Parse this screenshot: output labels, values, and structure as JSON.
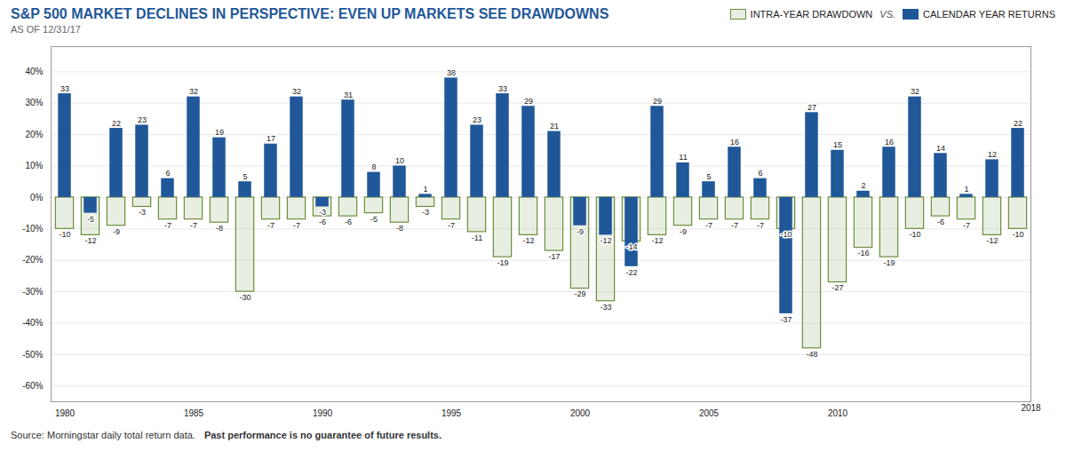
{
  "chart_data": {
    "type": "bar",
    "title": "S&P 500 MARKET DECLINES IN PERSPECTIVE: EVEN UP MARKETS SEE DRAWDOWNS",
    "subtitle": "AS OF 12/31/17",
    "annotations": [
      "VS.",
      "2018",
      "Source: Morningstar daily total return data.",
      "Past performance is no guarantee of future results."
    ],
    "categories": [
      "1980",
      null,
      null,
      null,
      null,
      "1985",
      null,
      null,
      null,
      null,
      "1990",
      null,
      null,
      null,
      null,
      "1995",
      null,
      null,
      null,
      null,
      "2000",
      null,
      null,
      null,
      null,
      "2005",
      null,
      null,
      null,
      null,
      "2010",
      null,
      null,
      null,
      null,
      null,
      null,
      null
    ],
    "series": [
      {
        "name": "INTRA-YEAR DRAWDOWN",
        "color": "#6a8e3c",
        "values": [
          -10,
          -12,
          -9,
          -3,
          -7,
          -7,
          -8,
          -30,
          -7,
          -7,
          -6,
          -6,
          -5,
          -8,
          -3,
          -7,
          -11,
          -19,
          -12,
          -17,
          -29,
          -33,
          -14,
          -12,
          -9,
          -7,
          -7,
          -7,
          -10,
          -48,
          -27,
          -16,
          -19,
          -10,
          -6,
          -7,
          -12,
          -10
        ]
      },
      {
        "name": "CALENDAR YEAR RETURNS",
        "color": "#1f5799",
        "values": [
          33,
          -5,
          22,
          23,
          6,
          32,
          19,
          5,
          17,
          32,
          -3,
          31,
          8,
          10,
          1,
          38,
          23,
          33,
          29,
          21,
          -9,
          -12,
          -22,
          29,
          11,
          5,
          16,
          6,
          -37,
          27,
          15,
          2,
          16,
          32,
          14,
          1,
          12,
          22
        ]
      }
    ],
    "ylim": [
      -65,
      48
    ],
    "yticks": [
      {
        "value": 40,
        "label": "40%"
      },
      {
        "value": 30,
        "label": "30%"
      },
      {
        "value": 20,
        "label": "20%"
      },
      {
        "value": 10,
        "label": "10%"
      },
      {
        "value": 0,
        "label": "0%"
      },
      {
        "value": -10,
        "label": "-10%"
      },
      {
        "value": -20,
        "label": "-20%"
      },
      {
        "value": -30,
        "label": "-30%"
      },
      {
        "value": -40,
        "label": "-40%"
      },
      {
        "value": -50,
        "label": "-50%"
      },
      {
        "value": -60,
        "label": "-60%"
      }
    ],
    "grid": true,
    "data_labels": true
  }
}
